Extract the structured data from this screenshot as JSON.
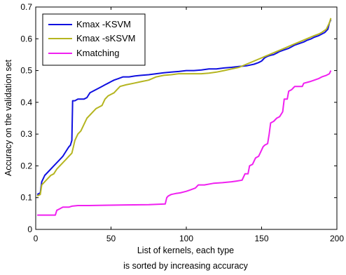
{
  "chart_data": {
    "type": "line",
    "xlabel_lines": [
      "List of kernels, each type",
      "is sorted by increasing accuracy"
    ],
    "ylabel": "Accuracy on the validation set",
    "xlim": [
      0,
      200
    ],
    "ylim": [
      0,
      0.7
    ],
    "xticks": [
      0,
      50,
      100,
      150,
      200
    ],
    "yticks": [
      0,
      0.1,
      0.2,
      0.3,
      0.4,
      0.5,
      0.6,
      0.7
    ],
    "ytick_labels": [
      "0",
      "0.1",
      "0.2",
      "0.3",
      "0.4",
      "0.5",
      "0.6",
      "0.7"
    ],
    "grid": false,
    "legend_position": "top-left",
    "series": [
      {
        "name": "Kmax -KSVM",
        "color": "#1010e0",
        "points": [
          [
            1,
            0.11
          ],
          [
            3,
            0.115
          ],
          [
            4,
            0.15
          ],
          [
            6,
            0.17
          ],
          [
            8,
            0.18
          ],
          [
            10,
            0.19
          ],
          [
            12,
            0.2
          ],
          [
            14,
            0.21
          ],
          [
            16,
            0.22
          ],
          [
            18,
            0.23
          ],
          [
            20,
            0.245
          ],
          [
            22,
            0.26
          ],
          [
            23,
            0.265
          ],
          [
            24,
            0.28
          ],
          [
            24.5,
            0.405
          ],
          [
            26,
            0.405
          ],
          [
            28,
            0.41
          ],
          [
            30,
            0.41
          ],
          [
            32,
            0.41
          ],
          [
            34,
            0.415
          ],
          [
            36,
            0.43
          ],
          [
            38,
            0.435
          ],
          [
            40,
            0.44
          ],
          [
            42,
            0.445
          ],
          [
            44,
            0.45
          ],
          [
            46,
            0.455
          ],
          [
            48,
            0.46
          ],
          [
            50,
            0.465
          ],
          [
            52,
            0.47
          ],
          [
            55,
            0.475
          ],
          [
            58,
            0.48
          ],
          [
            62,
            0.48
          ],
          [
            66,
            0.483
          ],
          [
            70,
            0.485
          ],
          [
            75,
            0.487
          ],
          [
            80,
            0.49
          ],
          [
            85,
            0.493
          ],
          [
            90,
            0.495
          ],
          [
            95,
            0.497
          ],
          [
            100,
            0.5
          ],
          [
            105,
            0.5
          ],
          [
            110,
            0.502
          ],
          [
            115,
            0.505
          ],
          [
            120,
            0.505
          ],
          [
            125,
            0.508
          ],
          [
            130,
            0.51
          ],
          [
            135,
            0.513
          ],
          [
            140,
            0.515
          ],
          [
            145,
            0.52
          ],
          [
            148,
            0.525
          ],
          [
            150,
            0.53
          ],
          [
            152,
            0.54
          ],
          [
            154,
            0.545
          ],
          [
            156,
            0.548
          ],
          [
            158,
            0.55
          ],
          [
            160,
            0.555
          ],
          [
            162,
            0.56
          ],
          [
            165,
            0.565
          ],
          [
            168,
            0.57
          ],
          [
            170,
            0.575
          ],
          [
            172,
            0.58
          ],
          [
            175,
            0.585
          ],
          [
            178,
            0.59
          ],
          [
            180,
            0.595
          ],
          [
            183,
            0.6
          ],
          [
            185,
            0.605
          ],
          [
            188,
            0.61
          ],
          [
            190,
            0.615
          ],
          [
            192,
            0.62
          ],
          [
            194,
            0.63
          ],
          [
            195,
            0.65
          ],
          [
            196,
            0.66
          ]
        ]
      },
      {
        "name": "Kmax -sKSVM",
        "color": "#b5b520",
        "points": [
          [
            1,
            0.105
          ],
          [
            3,
            0.11
          ],
          [
            4,
            0.14
          ],
          [
            6,
            0.15
          ],
          [
            8,
            0.16
          ],
          [
            10,
            0.17
          ],
          [
            12,
            0.175
          ],
          [
            14,
            0.19
          ],
          [
            16,
            0.2
          ],
          [
            18,
            0.21
          ],
          [
            20,
            0.22
          ],
          [
            22,
            0.23
          ],
          [
            24,
            0.24
          ],
          [
            25,
            0.26
          ],
          [
            26,
            0.28
          ],
          [
            28,
            0.3
          ],
          [
            30,
            0.31
          ],
          [
            32,
            0.33
          ],
          [
            34,
            0.35
          ],
          [
            36,
            0.36
          ],
          [
            38,
            0.37
          ],
          [
            40,
            0.38
          ],
          [
            42,
            0.385
          ],
          [
            44,
            0.39
          ],
          [
            46,
            0.41
          ],
          [
            48,
            0.42
          ],
          [
            50,
            0.425
          ],
          [
            52,
            0.43
          ],
          [
            54,
            0.44
          ],
          [
            56,
            0.45
          ],
          [
            60,
            0.455
          ],
          [
            65,
            0.46
          ],
          [
            70,
            0.465
          ],
          [
            75,
            0.47
          ],
          [
            80,
            0.48
          ],
          [
            85,
            0.485
          ],
          [
            90,
            0.487
          ],
          [
            95,
            0.49
          ],
          [
            100,
            0.49
          ],
          [
            105,
            0.49
          ],
          [
            110,
            0.49
          ],
          [
            115,
            0.492
          ],
          [
            120,
            0.495
          ],
          [
            125,
            0.5
          ],
          [
            130,
            0.505
          ],
          [
            135,
            0.51
          ],
          [
            140,
            0.52
          ],
          [
            145,
            0.53
          ],
          [
            150,
            0.54
          ],
          [
            155,
            0.55
          ],
          [
            160,
            0.56
          ],
          [
            165,
            0.57
          ],
          [
            170,
            0.58
          ],
          [
            175,
            0.59
          ],
          [
            180,
            0.6
          ],
          [
            185,
            0.61
          ],
          [
            188,
            0.615
          ],
          [
            190,
            0.62
          ],
          [
            193,
            0.63
          ],
          [
            195,
            0.65
          ],
          [
            196,
            0.665
          ]
        ]
      },
      {
        "name": "Kmatching",
        "color": "#f020f0",
        "points": [
          [
            1,
            0.045
          ],
          [
            13,
            0.045
          ],
          [
            14,
            0.06
          ],
          [
            16,
            0.065
          ],
          [
            18,
            0.07
          ],
          [
            22,
            0.07
          ],
          [
            24,
            0.073
          ],
          [
            28,
            0.075
          ],
          [
            35,
            0.075
          ],
          [
            45,
            0.076
          ],
          [
            60,
            0.077
          ],
          [
            75,
            0.078
          ],
          [
            86,
            0.08
          ],
          [
            87,
            0.1
          ],
          [
            88,
            0.105
          ],
          [
            90,
            0.11
          ],
          [
            93,
            0.113
          ],
          [
            96,
            0.115
          ],
          [
            100,
            0.12
          ],
          [
            103,
            0.125
          ],
          [
            106,
            0.13
          ],
          [
            108,
            0.14
          ],
          [
            112,
            0.14
          ],
          [
            118,
            0.145
          ],
          [
            124,
            0.147
          ],
          [
            130,
            0.15
          ],
          [
            133,
            0.152
          ],
          [
            137,
            0.155
          ],
          [
            139,
            0.175
          ],
          [
            141,
            0.175
          ],
          [
            142,
            0.2
          ],
          [
            144,
            0.205
          ],
          [
            146,
            0.225
          ],
          [
            148,
            0.23
          ],
          [
            149,
            0.24
          ],
          [
            151,
            0.26
          ],
          [
            152,
            0.265
          ],
          [
            154,
            0.27
          ],
          [
            155,
            0.3
          ],
          [
            156,
            0.335
          ],
          [
            158,
            0.34
          ],
          [
            160,
            0.35
          ],
          [
            162,
            0.355
          ],
          [
            164,
            0.37
          ],
          [
            165,
            0.41
          ],
          [
            167,
            0.41
          ],
          [
            168,
            0.435
          ],
          [
            170,
            0.44
          ],
          [
            171,
            0.445
          ],
          [
            172,
            0.45
          ],
          [
            177,
            0.45
          ],
          [
            178,
            0.46
          ],
          [
            182,
            0.465
          ],
          [
            185,
            0.47
          ],
          [
            188,
            0.475
          ],
          [
            190,
            0.48
          ],
          [
            193,
            0.485
          ],
          [
            195,
            0.49
          ],
          [
            196,
            0.5
          ]
        ]
      }
    ]
  }
}
